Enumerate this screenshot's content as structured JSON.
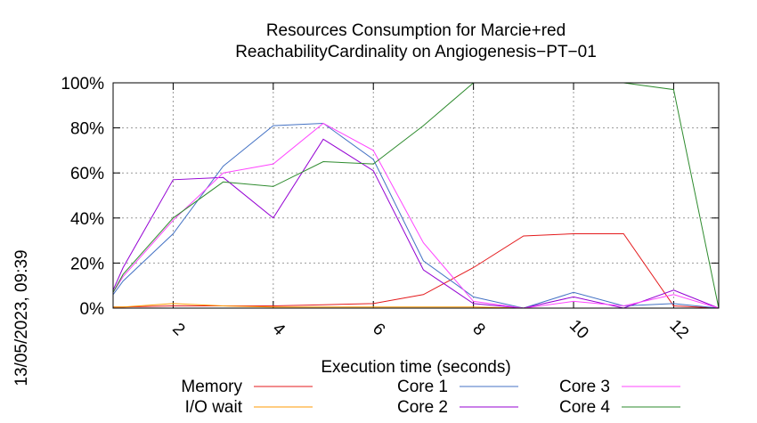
{
  "chart_data": {
    "type": "line",
    "title": "Resources Consumption for Marcie+red",
    "subtitle": "ReachabilityCardinality on Angiogenesis−PT−01",
    "xlabel": "Execution time (seconds)",
    "ylabel": "",
    "side_label": "13/05/2023, 09:39",
    "xlim": [
      0.8,
      12.9
    ],
    "ylim": [
      0,
      100
    ],
    "xticks": [
      2,
      4,
      6,
      8,
      10,
      12
    ],
    "yticks": [
      0,
      20,
      40,
      60,
      80,
      100
    ],
    "ytick_labels": [
      "0%",
      "20%",
      "40%",
      "60%",
      "80%",
      "100%"
    ],
    "grid": true,
    "legend_position": "bottom",
    "series": [
      {
        "name": "Memory",
        "color": "#e41a1c",
        "x": [
          0.8,
          1,
          2,
          3,
          4,
          5,
          6,
          7,
          8,
          9,
          10,
          11,
          12,
          12.9
        ],
        "y": [
          0.5,
          0.5,
          1,
          1,
          1,
          1.5,
          2,
          6,
          18,
          32,
          33,
          33,
          1,
          0
        ]
      },
      {
        "name": "I/O wait",
        "color": "#ff9900",
        "x": [
          0.8,
          1,
          2,
          3,
          4,
          5,
          6,
          7,
          8,
          9,
          10,
          11,
          12,
          12.9
        ],
        "y": [
          0.5,
          0.5,
          2,
          1,
          0.5,
          0.5,
          0.5,
          0.5,
          0.5,
          0,
          0,
          0,
          0,
          0
        ]
      },
      {
        "name": "Core 1",
        "color": "#4472c4",
        "x": [
          0.8,
          1,
          2,
          3,
          4,
          5,
          6,
          7,
          8,
          9,
          10,
          11,
          12,
          12.9
        ],
        "y": [
          6,
          12,
          33,
          63,
          81,
          82,
          66,
          21,
          5,
          0,
          7,
          1,
          2,
          0
        ]
      },
      {
        "name": "Core 2",
        "color": "#9400d3",
        "x": [
          0.8,
          1,
          2,
          3,
          4,
          5,
          6,
          7,
          8,
          9,
          10,
          11,
          12,
          12.9
        ],
        "y": [
          8,
          18,
          57,
          58,
          40,
          75,
          61,
          17,
          2,
          0,
          5,
          0,
          8,
          0
        ]
      },
      {
        "name": "Core 3",
        "color": "#ff44ff",
        "x": [
          0.8,
          1,
          2,
          3,
          4,
          5,
          6,
          7,
          8,
          9,
          10,
          11,
          12,
          12.9
        ],
        "y": [
          7,
          14,
          39,
          60,
          64,
          82,
          70,
          29,
          3,
          0,
          3,
          1,
          6,
          0
        ]
      },
      {
        "name": "Core 4",
        "color": "#2e8b2e",
        "x": [
          0.8,
          1,
          2,
          3,
          4,
          5,
          6,
          7,
          8,
          9,
          10,
          11,
          12,
          12.9
        ],
        "y": [
          7,
          15,
          40,
          56,
          54,
          65,
          64,
          81,
          100,
          100,
          100,
          100,
          97,
          0
        ]
      }
    ]
  }
}
